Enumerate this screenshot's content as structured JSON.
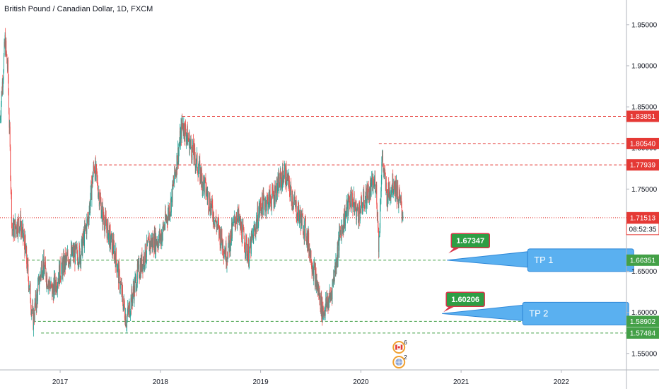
{
  "chart_data": {
    "type": "candlestick",
    "title": "British Pound / Canadian Dollar, 1D, FXCM",
    "ylim": [
      1.53,
      1.98
    ],
    "x_domain": [
      2016.4,
      2022.65
    ],
    "x_ticks": [
      {
        "label": "2017",
        "value": 2017
      },
      {
        "label": "2018",
        "value": 2018
      },
      {
        "label": "2019",
        "value": 2019
      },
      {
        "label": "2020",
        "value": 2020
      },
      {
        "label": "2021",
        "value": 2021
      },
      {
        "label": "2022",
        "value": 2022
      }
    ],
    "y_ticks": [
      "1.95000",
      "1.90000",
      "1.85000",
      "1.80000",
      "1.75000",
      "1.70000",
      "1.65000",
      "1.60000",
      "1.55000"
    ],
    "up_color": "#26a69a",
    "down_color": "#ef5350",
    "price_path": [
      {
        "t": 2016.4,
        "p": 1.835
      },
      {
        "t": 2016.45,
        "p": 1.93
      },
      {
        "t": 2016.48,
        "p": 1.89
      },
      {
        "t": 2016.52,
        "p": 1.7
      },
      {
        "t": 2016.6,
        "p": 1.71
      },
      {
        "t": 2016.65,
        "p": 1.68
      },
      {
        "t": 2016.73,
        "p": 1.59
      },
      {
        "t": 2016.82,
        "p": 1.66
      },
      {
        "t": 2016.92,
        "p": 1.625
      },
      {
        "t": 2017.0,
        "p": 1.65
      },
      {
        "t": 2017.1,
        "p": 1.67
      },
      {
        "t": 2017.2,
        "p": 1.67
      },
      {
        "t": 2017.28,
        "p": 1.715
      },
      {
        "t": 2017.34,
        "p": 1.78
      },
      {
        "t": 2017.42,
        "p": 1.72
      },
      {
        "t": 2017.55,
        "p": 1.67
      },
      {
        "t": 2017.66,
        "p": 1.59
      },
      {
        "t": 2017.78,
        "p": 1.65
      },
      {
        "t": 2017.9,
        "p": 1.685
      },
      {
        "t": 2018.0,
        "p": 1.69
      },
      {
        "t": 2018.1,
        "p": 1.73
      },
      {
        "t": 2018.22,
        "p": 1.83
      },
      {
        "t": 2018.34,
        "p": 1.79
      },
      {
        "t": 2018.45,
        "p": 1.75
      },
      {
        "t": 2018.58,
        "p": 1.7
      },
      {
        "t": 2018.66,
        "p": 1.67
      },
      {
        "t": 2018.76,
        "p": 1.72
      },
      {
        "t": 2018.88,
        "p": 1.67
      },
      {
        "t": 2019.0,
        "p": 1.73
      },
      {
        "t": 2019.12,
        "p": 1.74
      },
      {
        "t": 2019.24,
        "p": 1.77
      },
      {
        "t": 2019.34,
        "p": 1.73
      },
      {
        "t": 2019.45,
        "p": 1.7
      },
      {
        "t": 2019.55,
        "p": 1.64
      },
      {
        "t": 2019.62,
        "p": 1.6
      },
      {
        "t": 2019.7,
        "p": 1.62
      },
      {
        "t": 2019.8,
        "p": 1.7
      },
      {
        "t": 2019.9,
        "p": 1.74
      },
      {
        "t": 2019.97,
        "p": 1.72
      },
      {
        "t": 2020.05,
        "p": 1.74
      },
      {
        "t": 2020.15,
        "p": 1.76
      },
      {
        "t": 2020.18,
        "p": 1.68
      },
      {
        "t": 2020.21,
        "p": 1.79
      },
      {
        "t": 2020.26,
        "p": 1.74
      },
      {
        "t": 2020.33,
        "p": 1.76
      },
      {
        "t": 2020.42,
        "p": 1.72
      }
    ],
    "horizontal_levels": [
      {
        "value": 1.83851,
        "label": "1.83851",
        "style": "red-dashed",
        "from": 2018.22
      },
      {
        "value": 1.8054,
        "label": "1.80540",
        "style": "red-dashed",
        "from": 2020.18
      },
      {
        "value": 1.77939,
        "label": "1.77939",
        "style": "red-dashed",
        "from": 2017.34
      },
      {
        "value": 1.71513,
        "label": "1.71513",
        "style": "red-dotted-current",
        "from": 2016.4
      },
      {
        "value": 1.66351,
        "label": "1.66351",
        "style": "green-dashed",
        "from": 2016.62
      },
      {
        "value": 1.58902,
        "label": "1.58902",
        "style": "green-dashed",
        "from": 2016.73
      },
      {
        "value": 1.57484,
        "label": "1.57484",
        "style": "green-dashed",
        "from": 2016.81
      }
    ],
    "countdown_label": "08:52:35",
    "callouts": [
      {
        "text": "TP 1",
        "target_price": 1.6635,
        "target_time": 2020.86
      },
      {
        "text": "TP 2",
        "target_price": 1.5985,
        "target_time": 2020.81
      }
    ],
    "price_badges": [
      {
        "text": "1.67347",
        "price": 1.6735,
        "time": 2020.86
      },
      {
        "text": "1.60206",
        "price": 1.6021,
        "time": 2020.81
      }
    ],
    "events": [
      {
        "count": "6",
        "time": 2020.38,
        "kind": "flag"
      },
      {
        "count": "2",
        "time": 2020.38,
        "kind": "globe"
      }
    ]
  },
  "colors": {
    "axis_bg": "#ffffff",
    "grid": "#e0e3eb",
    "red_level": "#e53935",
    "green_level": "#43a047",
    "callout_fill": "#5ab0f0",
    "callout_stroke": "#2f88d8",
    "badge_fill": "#2e9e44",
    "badge_stroke": "#d8344a",
    "event_ring": "#f0a030"
  },
  "icons": [
    "canada-flag-icon",
    "globe-icon"
  ]
}
